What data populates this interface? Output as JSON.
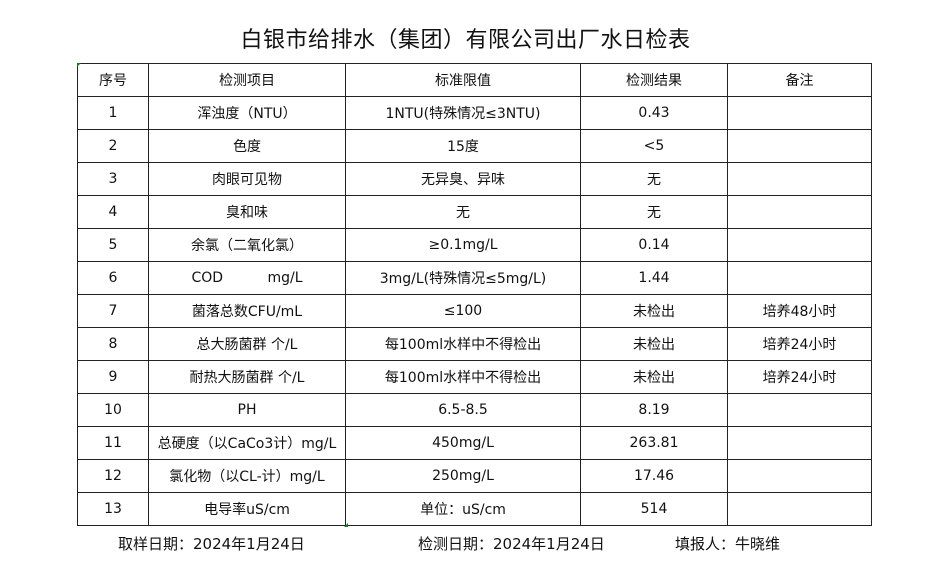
{
  "title": "白银市给排水（集团）有限公司出厂水日检表",
  "table": {
    "headers": [
      "序号",
      "检测项目",
      "标准限值",
      "检测结果",
      "备注"
    ],
    "rows": [
      [
        "1",
        "浑浊度（NTU）",
        "1NTU(特殊情况≤3NTU)",
        "0.43",
        ""
      ],
      [
        "2",
        "色度",
        "15度",
        "<5",
        ""
      ],
      [
        "3",
        "肉眼可见物",
        "无异臭、异味",
        "无",
        ""
      ],
      [
        "4",
        "臭和味",
        "无",
        "无",
        ""
      ],
      [
        "5",
        "余氯（二氧化氯）",
        "≥0.1mg/L",
        "0.14",
        ""
      ],
      [
        "6",
        "COD          mg/L",
        "3mg/L(特殊情况≤5mg/L)",
        "1.44",
        ""
      ],
      [
        "7",
        "菌落总数CFU/mL",
        "≤100",
        "未检出",
        "培养48小时"
      ],
      [
        "8",
        "总大肠菌群 个/L",
        "每100ml水样中不得检出",
        "未检出",
        "培养24小时"
      ],
      [
        "9",
        "耐热大肠菌群 个/L",
        "每100ml水样中不得检出",
        "未检出",
        "培养24小时"
      ],
      [
        "10",
        "PH",
        "6.5-8.5",
        "8.19",
        ""
      ],
      [
        "11",
        "总硬度（以CaCo3计）mg/L",
        "450mg/L",
        "263.81",
        ""
      ],
      [
        "12",
        "氯化物（以CL-计）mg/L",
        "250mg/L",
        "17.46",
        ""
      ],
      [
        "13",
        "电导率uS/cm",
        "单位：uS/cm",
        "514",
        ""
      ]
    ]
  },
  "footer": {
    "sampling_date": "取样日期：2024年1月24日",
    "test_date": "检测日期：2024年1月24日",
    "reporter": "填报人：牛晓维"
  },
  "colors": {
    "cell_marker": "#1e7a1e"
  }
}
